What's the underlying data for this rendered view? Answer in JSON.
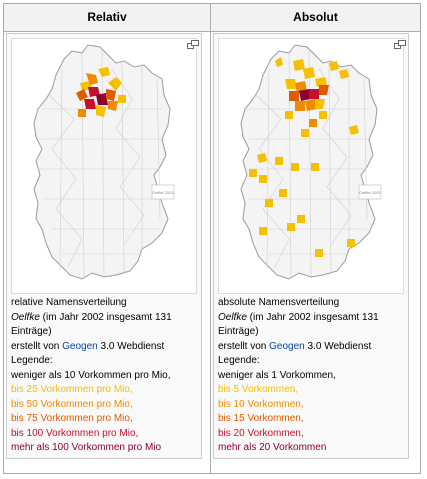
{
  "headers": {
    "left": "Relativ",
    "right": "Absolut"
  },
  "colors": {
    "map_base": "#f4f4f4",
    "district_line": "#cfcfcf",
    "outline": "#9a9a9a",
    "legend_1": "#f5c000",
    "legend_2": "#f08a00",
    "legend_3": "#e05a00",
    "legend_4": "#c8102e",
    "legend_5": "#8b0030",
    "link": "#0645ad"
  },
  "left": {
    "map_inset_text": "Oelfke 2002",
    "caption": {
      "line1": "relative Namensverteilung",
      "name": "Oelfke",
      "line2_rest": " (im Jahr 2002 insgesamt 131",
      "line3": "Einträge)",
      "source_prefix": "erstellt von ",
      "source_link": "Geogen",
      "source_suffix": " 3.0 Webdienst",
      "legend_title": "Legende:",
      "legend": [
        "weniger als 10 Vorkommen pro Mio,",
        "bis 25 Vorkommen pro Mio,",
        "bis 50 Vorkommen pro Mio,",
        "bis 75 Vorkommen pro Mio,",
        "bis 100 Vorkommen pro Mio,",
        "mehr als 100 Vorkommen pro Mio"
      ]
    }
  },
  "right": {
    "map_inset_text": "Oelfke 2002",
    "caption": {
      "line1": "absolute Namensverteilung",
      "name": "Oelfke",
      "line2_rest": " (im Jahr 2002 insgesamt 131",
      "line3": "Einträge)",
      "source_prefix": "erstellt von ",
      "source_link": "Geogen",
      "source_suffix": " 3.0 Webdienst",
      "legend_title": "Legende:",
      "legend": [
        "weniger als 1 Vorkommen,",
        "bis 5 Vorkommen,",
        "bis 10 Vorkommen,",
        "bis 15 Vorkommen,",
        "bis 20 Vorkommen,",
        "mehr als 20 Vorkommen"
      ]
    }
  },
  "icons": {
    "magnify": "magnify-icon"
  }
}
